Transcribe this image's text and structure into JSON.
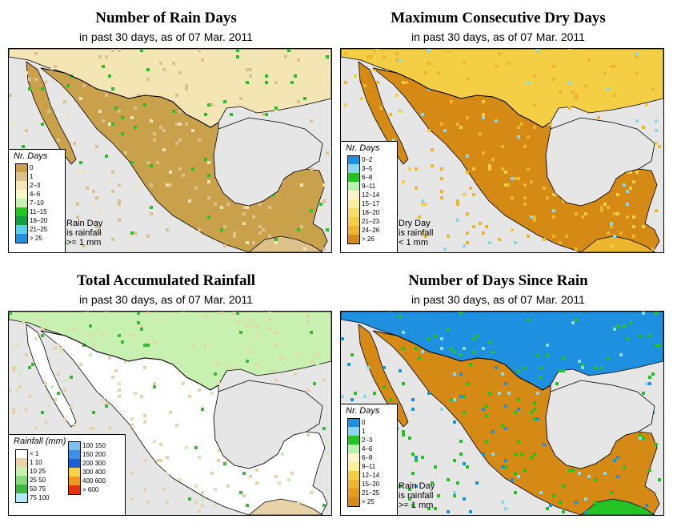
{
  "panels": [
    {
      "title": "Number of Rain Days",
      "subtitle": "in past 30 days, as of  07 Mar. 2011",
      "legend_title": "Nr. Days",
      "legend": [
        {
          "label": "0",
          "color": "#c9a14a"
        },
        {
          "label": "1",
          "color": "#dcc18a"
        },
        {
          "label": "2–3",
          "color": "#f3e6b4"
        },
        {
          "label": "4–6",
          "color": "#fbf6c8"
        },
        {
          "label": "7–10",
          "color": "#c8f0b0"
        },
        {
          "label": "11–15",
          "color": "#22c322"
        },
        {
          "label": "16–20",
          "color": "#11a03c"
        },
        {
          "label": "21–25",
          "color": "#5bd0ea"
        },
        {
          "label": "> 25",
          "color": "#1f8fe0"
        }
      ],
      "note": [
        "Rain Day",
        "is rainfall",
        ">= 1 mm"
      ],
      "palette": {
        "land": "#c9a14a",
        "land2": "#dcc18a",
        "land3": "#f3e6b4",
        "accent": "#22c322"
      }
    },
    {
      "title": "Maximum Consecutive Dry Days",
      "subtitle": "in past 30 days, as of  07 Mar. 2011",
      "legend_title": "Nr. Days",
      "legend": [
        {
          "label": "0–2",
          "color": "#1f8fe0"
        },
        {
          "label": "3–5",
          "color": "#88d8f0"
        },
        {
          "label": "6–8",
          "color": "#22c322"
        },
        {
          "label": "9–11",
          "color": "#b8f0b0"
        },
        {
          "label": "12–14",
          "color": "#fbf6c8"
        },
        {
          "label": "15–17",
          "color": "#f8ef98"
        },
        {
          "label": "18–20",
          "color": "#f6e06a"
        },
        {
          "label": "21–23",
          "color": "#f4cf45"
        },
        {
          "label": "24–26",
          "color": "#eeb52e"
        },
        {
          "label": "> 26",
          "color": "#d48a14"
        }
      ],
      "note": [
        "Dry Day",
        "is rainfall",
        "< 1 mm"
      ],
      "palette": {
        "land": "#d48a14",
        "land2": "#eeb52e",
        "land3": "#f4cf45",
        "accent": "#88d8f0"
      }
    },
    {
      "title": "Total Accumulated Rainfall",
      "subtitle": "in past 30 days, as of  07 Mar. 2011",
      "legend_title": "Rainfall (mm)",
      "legend": [
        {
          "label": "< 1",
          "color": "#ffffff"
        },
        {
          "label": "1     10",
          "color": "#e8d2a8"
        },
        {
          "label": "10    25",
          "color": "#c8f0b0"
        },
        {
          "label": "25    50",
          "color": "#86dc7c"
        },
        {
          "label": "50    75",
          "color": "#3cb83c"
        },
        {
          "label": "75   100",
          "color": "#b4ecf6"
        }
      ],
      "legend2": [
        {
          "label": "100  150",
          "color": "#7fc0ee"
        },
        {
          "label": "150  200",
          "color": "#3b8fe6"
        },
        {
          "label": "200  300",
          "color": "#1a5fd8"
        },
        {
          "label": "300  400",
          "color": "#f6d24a"
        },
        {
          "label": "400  600",
          "color": "#f39a1e"
        },
        {
          "label": "> 600",
          "color": "#e5330f"
        }
      ],
      "note": [],
      "palette": {
        "land": "#ffffff",
        "land2": "#e8d2a8",
        "land3": "#c8f0b0",
        "accent": "#3cb83c"
      }
    },
    {
      "title": "Number of Days Since Rain",
      "subtitle": "in past 30 days, as of  07 Mar. 2011",
      "legend_title": "Nr. Days",
      "legend": [
        {
          "label": "0",
          "color": "#1f8fe0"
        },
        {
          "label": "1",
          "color": "#88d8f0"
        },
        {
          "label": "2–3",
          "color": "#22c322"
        },
        {
          "label": "4–6",
          "color": "#b8f0b0"
        },
        {
          "label": "6–8",
          "color": "#fbf6c8"
        },
        {
          "label": "9–11",
          "color": "#f8ef98"
        },
        {
          "label": "12–14",
          "color": "#f4cf45"
        },
        {
          "label": "15–20",
          "color": "#eeb52e"
        },
        {
          "label": "21–25",
          "color": "#e59c1c"
        },
        {
          "label": "> 25",
          "color": "#d48a14"
        }
      ],
      "note": [
        "Rain Day",
        "is rainfall",
        ">= 1 mm"
      ],
      "palette": {
        "land": "#d48a14",
        "land2": "#22c322",
        "land3": "#1f8fe0",
        "accent": "#88d8f0"
      }
    }
  ]
}
